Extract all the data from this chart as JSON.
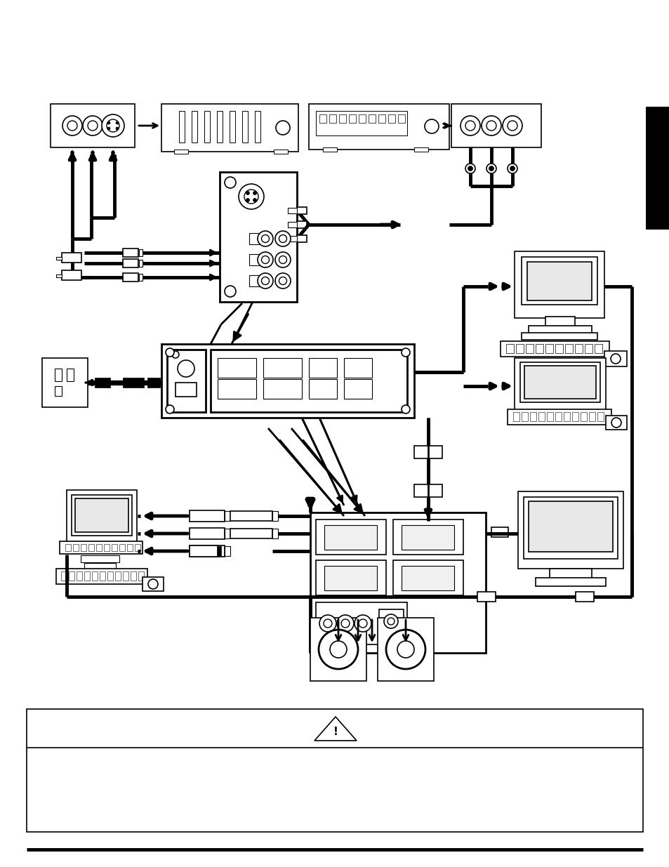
{
  "bg_color": "#ffffff",
  "page_width": 9.54,
  "page_height": 12.35,
  "dpi": 100,
  "sidebar_color": "#000000"
}
